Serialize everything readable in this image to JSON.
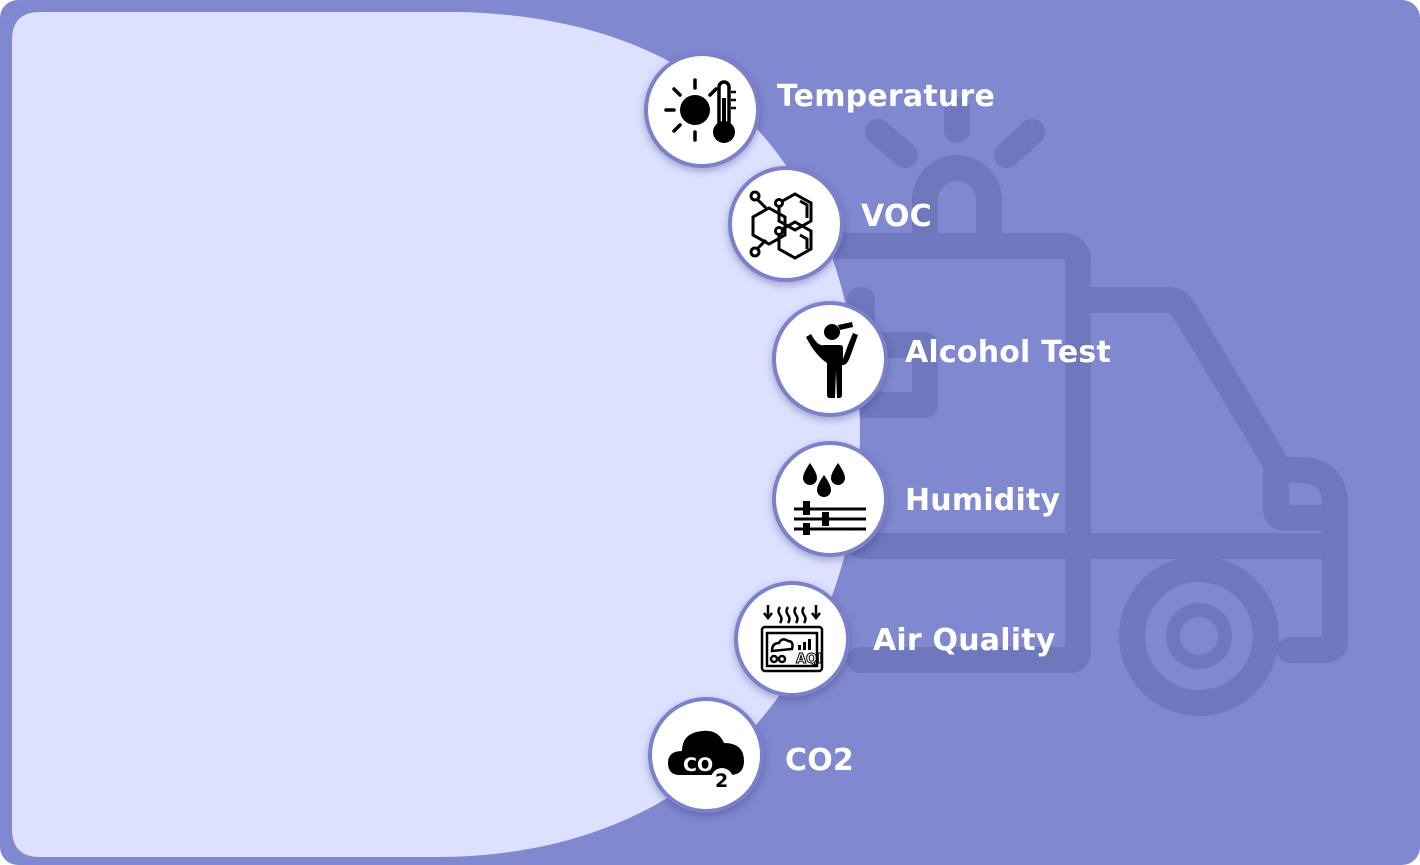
{
  "colors": {
    "background": "#8088cf",
    "panel": "#dee0ff",
    "circle_fill": "#ffffff",
    "circle_border": "#7b82c9",
    "icon": "#000000",
    "label_text": "#ffffff",
    "watermark": "#6f77bd"
  },
  "watermark_icon": "ambulance-icon",
  "features": [
    {
      "label": "Temperature",
      "icon": "sun-thermometer-icon"
    },
    {
      "label": "VOC",
      "icon": "molecule-icon"
    },
    {
      "label": "Alcohol Test",
      "icon": "person-drinking-icon"
    },
    {
      "label": "Humidity",
      "icon": "humidity-drops-icon"
    },
    {
      "label": "Air Quality",
      "icon": "aqi-monitor-icon"
    },
    {
      "label": "CO2",
      "icon": "co2-cloud-icon"
    }
  ]
}
